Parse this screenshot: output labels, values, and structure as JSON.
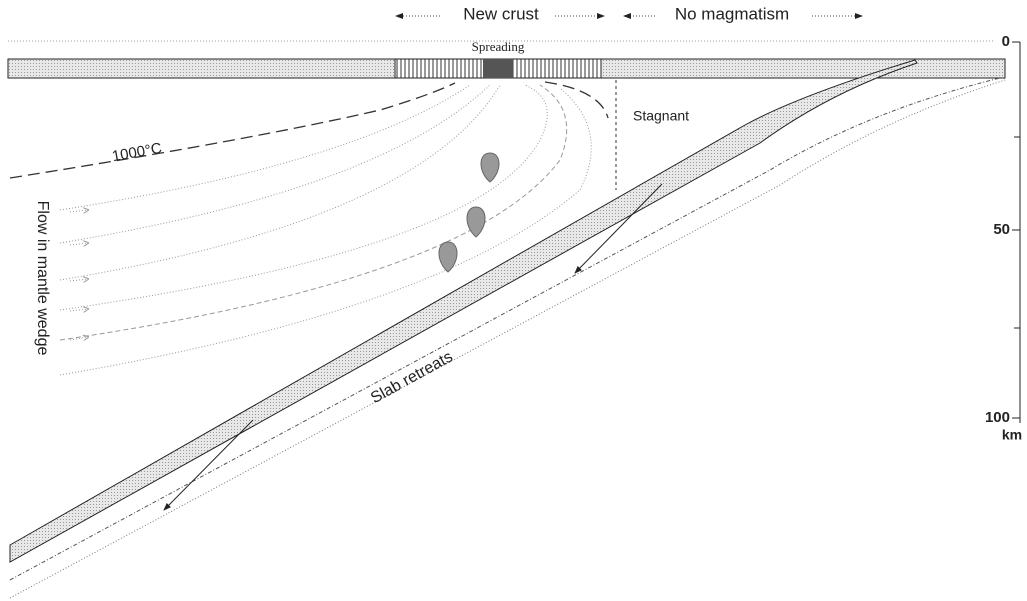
{
  "header": {
    "new_crust": "New crust",
    "no_magmatism": "No magmatism"
  },
  "labels": {
    "spreading": "Spreading",
    "stagnant": "Stagnant",
    "isotherm": "1000°C",
    "flow": "Flow in mantle wedge",
    "slab": "Slab retreats"
  },
  "depth_axis": {
    "ticks": [
      0,
      50,
      100
    ],
    "unit": "km",
    "lim": [
      0,
      100
    ]
  }
}
